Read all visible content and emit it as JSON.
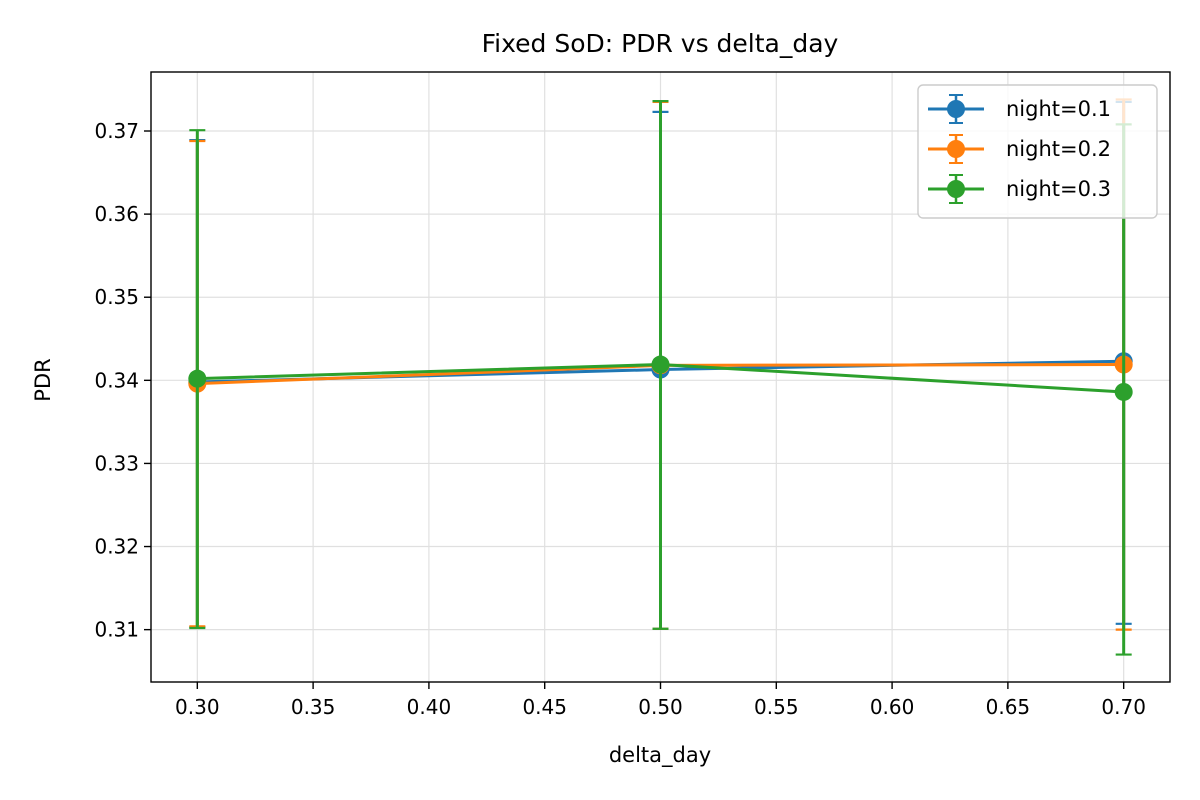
{
  "chart_data": {
    "type": "line",
    "title": "Fixed SoD: PDR vs delta_day",
    "xlabel": "delta_day",
    "ylabel": "PDR",
    "x": [
      0.3,
      0.5,
      0.7
    ],
    "xlim": [
      0.28,
      0.72
    ],
    "ylim": [
      0.3037,
      0.3771
    ],
    "xticks": [
      "0.30",
      "0.35",
      "0.40",
      "0.45",
      "0.50",
      "0.55",
      "0.60",
      "0.65",
      "0.70"
    ],
    "yticks": [
      "0.31",
      "0.32",
      "0.33",
      "0.34",
      "0.35",
      "0.36",
      "0.37"
    ],
    "grid": true,
    "legend_position": "top-right",
    "error_bars": true,
    "series": [
      {
        "name": "night=0.1",
        "color": "#1f77b4",
        "values": [
          0.3398,
          0.3413,
          0.3423
        ],
        "err_low": [
          0.3103,
          0.3101,
          0.3107
        ],
        "err_high": [
          0.3689,
          0.3723,
          0.3735
        ]
      },
      {
        "name": "night=0.2",
        "color": "#ff7f0e",
        "values": [
          0.3396,
          0.3418,
          0.3419
        ],
        "err_low": [
          0.3104,
          0.3101,
          0.31
        ],
        "err_high": [
          0.3688,
          0.3735,
          0.3738
        ]
      },
      {
        "name": "night=0.3",
        "color": "#2ca02c",
        "values": [
          0.3402,
          0.3419,
          0.3386
        ],
        "err_low": [
          0.3102,
          0.3101,
          0.307
        ],
        "err_high": [
          0.3701,
          0.3736,
          0.3708
        ]
      }
    ]
  }
}
